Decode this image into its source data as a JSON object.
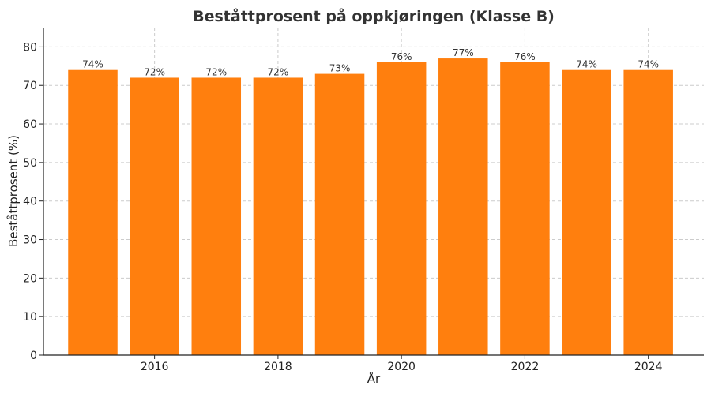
{
  "chart_data": {
    "type": "bar",
    "title": "Beståttprosent på oppkjøringen (Klasse B)",
    "xlabel": "År",
    "ylabel": "Beståttprosent (%)",
    "x": [
      2015,
      2016,
      2017,
      2018,
      2019,
      2020,
      2021,
      2022,
      2023,
      2024
    ],
    "values": [
      74,
      72,
      72,
      72,
      73,
      76,
      77,
      76,
      74,
      74
    ],
    "data_labels": [
      "74%",
      "72%",
      "72%",
      "72%",
      "73%",
      "76%",
      "77%",
      "76%",
      "74%",
      "74%"
    ],
    "xticks": [
      "2016",
      "2018",
      "2020",
      "2022",
      "2024"
    ],
    "yticks": [
      "0",
      "10",
      "20",
      "30",
      "40",
      "50",
      "60",
      "70",
      "80"
    ],
    "xlim": [
      2014.2,
      2024.9
    ],
    "ylim": [
      0,
      85
    ],
    "grid": true,
    "bar_color": "#ff7f0e"
  }
}
